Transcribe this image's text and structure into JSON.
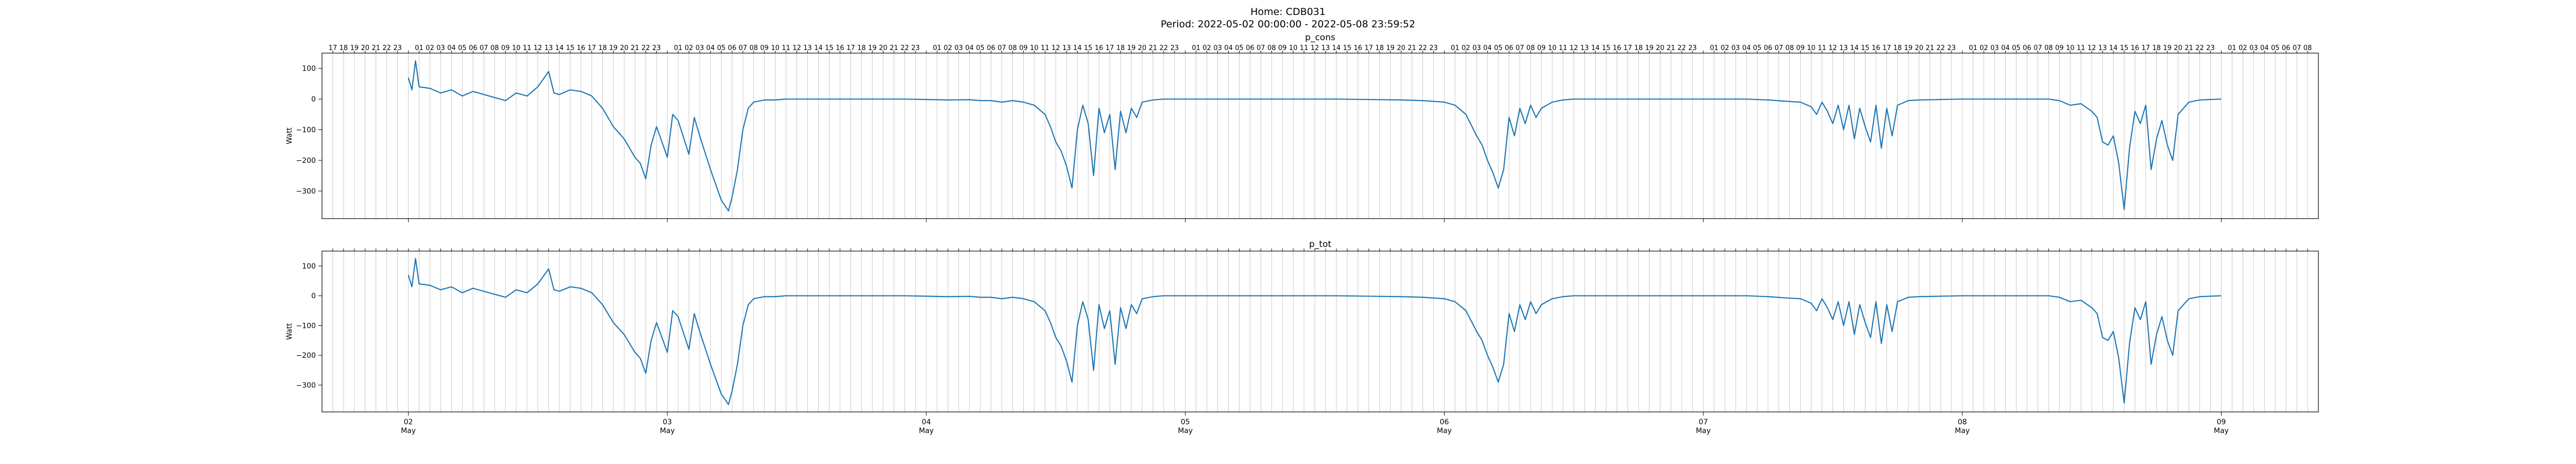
{
  "figure": {
    "title_line1": "Home: CDB031",
    "title_line2": "Period: 2022-05-02 00:00:00 - 2022-05-08 23:59:52"
  },
  "colors": {
    "line": "#1f77b4",
    "grid": "#c8c8c8",
    "axis": "#000000"
  },
  "chart_data": [
    {
      "type": "line",
      "title": "p_cons",
      "ylabel": "Watt",
      "xlim": [
        "2022-05-01 16:00",
        "2022-05-09 09:00"
      ],
      "ylim": [
        -390,
        150
      ],
      "yticks": [
        100,
        0,
        -100,
        -200,
        -300
      ],
      "x_major_ticks": [
        {
          "date": "2022-05-02",
          "day": "02",
          "month": "May"
        },
        {
          "date": "2022-05-03",
          "day": "03",
          "month": "May"
        },
        {
          "date": "2022-05-04",
          "day": "04",
          "month": "May"
        },
        {
          "date": "2022-05-05",
          "day": "05",
          "month": "May"
        },
        {
          "date": "2022-05-06",
          "day": "06",
          "month": "May"
        },
        {
          "date": "2022-05-07",
          "day": "07",
          "month": "May"
        },
        {
          "date": "2022-05-08",
          "day": "08",
          "month": "May"
        },
        {
          "date": "2022-05-09",
          "day": "09",
          "month": "May"
        }
      ],
      "x_minor_ticks": "hourly (labels 01 to 23; midnight unlabeled)",
      "grid": "vertical hourly",
      "series": [
        {
          "points": [
            [
              "2022-05-02 00:00",
              70
            ],
            [
              "2022-05-02 00:20",
              30
            ],
            [
              "2022-05-02 00:40",
              125
            ],
            [
              "2022-05-02 01:00",
              40
            ],
            [
              "2022-05-02 02:00",
              35
            ],
            [
              "2022-05-02 03:00",
              20
            ],
            [
              "2022-05-02 04:00",
              30
            ],
            [
              "2022-05-02 05:00",
              10
            ],
            [
              "2022-05-02 06:00",
              25
            ],
            [
              "2022-05-02 07:00",
              15
            ],
            [
              "2022-05-02 08:00",
              5
            ],
            [
              "2022-05-02 09:00",
              -5
            ],
            [
              "2022-05-02 10:00",
              20
            ],
            [
              "2022-05-02 11:00",
              10
            ],
            [
              "2022-05-02 12:00",
              40
            ],
            [
              "2022-05-02 13:00",
              90
            ],
            [
              "2022-05-02 13:30",
              20
            ],
            [
              "2022-05-02 14:00",
              15
            ],
            [
              "2022-05-02 15:00",
              30
            ],
            [
              "2022-05-02 16:00",
              25
            ],
            [
              "2022-05-02 17:00",
              10
            ],
            [
              "2022-05-02 18:00",
              -30
            ],
            [
              "2022-05-02 19:00",
              -90
            ],
            [
              "2022-05-02 20:00",
              -130
            ],
            [
              "2022-05-02 21:00",
              -190
            ],
            [
              "2022-05-02 21:30",
              -210
            ],
            [
              "2022-05-02 22:00",
              -260
            ],
            [
              "2022-05-02 22:30",
              -150
            ],
            [
              "2022-05-02 23:00",
              -90
            ],
            [
              "2022-05-03 00:00",
              -190
            ],
            [
              "2022-05-03 00:30",
              -50
            ],
            [
              "2022-05-03 01:00",
              -70
            ],
            [
              "2022-05-03 02:00",
              -180
            ],
            [
              "2022-05-03 02:30",
              -60
            ],
            [
              "2022-05-03 03:00",
              -120
            ],
            [
              "2022-05-03 04:00",
              -230
            ],
            [
              "2022-05-03 05:00",
              -330
            ],
            [
              "2022-05-03 05:40",
              -365
            ],
            [
              "2022-05-03 06:00",
              -320
            ],
            [
              "2022-05-03 06:30",
              -230
            ],
            [
              "2022-05-03 07:00",
              -100
            ],
            [
              "2022-05-03 07:30",
              -30
            ],
            [
              "2022-05-03 08:00",
              -10
            ],
            [
              "2022-05-03 09:00",
              -3
            ],
            [
              "2022-05-03 10:00",
              -3
            ],
            [
              "2022-05-03 11:00",
              0
            ],
            [
              "2022-05-03 14:00",
              0
            ],
            [
              "2022-05-03 18:00",
              0
            ],
            [
              "2022-05-03 22:00",
              0
            ],
            [
              "2022-05-04 02:00",
              -3
            ],
            [
              "2022-05-04 04:00",
              -2
            ],
            [
              "2022-05-04 05:00",
              -5
            ],
            [
              "2022-05-04 06:00",
              -5
            ],
            [
              "2022-05-04 07:00",
              -10
            ],
            [
              "2022-05-04 08:00",
              -5
            ],
            [
              "2022-05-04 09:00",
              -10
            ],
            [
              "2022-05-04 10:00",
              -20
            ],
            [
              "2022-05-04 11:00",
              -50
            ],
            [
              "2022-05-04 11:30",
              -90
            ],
            [
              "2022-05-04 12:00",
              -140
            ],
            [
              "2022-05-04 12:30",
              -170
            ],
            [
              "2022-05-04 13:00",
              -220
            ],
            [
              "2022-05-04 13:30",
              -290
            ],
            [
              "2022-05-04 14:00",
              -100
            ],
            [
              "2022-05-04 14:30",
              -20
            ],
            [
              "2022-05-04 15:00",
              -80
            ],
            [
              "2022-05-04 15:30",
              -250
            ],
            [
              "2022-05-04 16:00",
              -30
            ],
            [
              "2022-05-04 16:30",
              -110
            ],
            [
              "2022-05-04 17:00",
              -50
            ],
            [
              "2022-05-04 17:30",
              -230
            ],
            [
              "2022-05-04 18:00",
              -40
            ],
            [
              "2022-05-04 18:30",
              -110
            ],
            [
              "2022-05-04 19:00",
              -30
            ],
            [
              "2022-05-04 19:30",
              -60
            ],
            [
              "2022-05-04 20:00",
              -10
            ],
            [
              "2022-05-04 21:00",
              -3
            ],
            [
              "2022-05-04 22:00",
              0
            ],
            [
              "2022-05-05 02:00",
              0
            ],
            [
              "2022-05-05 08:00",
              0
            ],
            [
              "2022-05-05 14:00",
              0
            ],
            [
              "2022-05-05 20:00",
              -3
            ],
            [
              "2022-05-05 22:00",
              -5
            ],
            [
              "2022-05-06 00:00",
              -10
            ],
            [
              "2022-05-06 01:00",
              -20
            ],
            [
              "2022-05-06 02:00",
              -50
            ],
            [
              "2022-05-06 03:00",
              -120
            ],
            [
              "2022-05-06 03:30",
              -150
            ],
            [
              "2022-05-06 04:00",
              -200
            ],
            [
              "2022-05-06 04:30",
              -240
            ],
            [
              "2022-05-06 05:00",
              -290
            ],
            [
              "2022-05-06 05:30",
              -230
            ],
            [
              "2022-05-06 06:00",
              -60
            ],
            [
              "2022-05-06 06:30",
              -120
            ],
            [
              "2022-05-06 07:00",
              -30
            ],
            [
              "2022-05-06 07:30",
              -80
            ],
            [
              "2022-05-06 08:00",
              -20
            ],
            [
              "2022-05-06 08:30",
              -60
            ],
            [
              "2022-05-06 09:00",
              -30
            ],
            [
              "2022-05-06 10:00",
              -10
            ],
            [
              "2022-05-06 11:00",
              -3
            ],
            [
              "2022-05-06 12:00",
              0
            ],
            [
              "2022-05-06 16:00",
              0
            ],
            [
              "2022-05-06 20:00",
              0
            ],
            [
              "2022-05-07 00:00",
              0
            ],
            [
              "2022-05-07 04:00",
              0
            ],
            [
              "2022-05-07 06:00",
              -3
            ],
            [
              "2022-05-07 08:00",
              -8
            ],
            [
              "2022-05-07 09:00",
              -10
            ],
            [
              "2022-05-07 10:00",
              -25
            ],
            [
              "2022-05-07 10:30",
              -50
            ],
            [
              "2022-05-07 11:00",
              -10
            ],
            [
              "2022-05-07 11:30",
              -40
            ],
            [
              "2022-05-07 12:00",
              -80
            ],
            [
              "2022-05-07 12:30",
              -20
            ],
            [
              "2022-05-07 13:00",
              -100
            ],
            [
              "2022-05-07 13:30",
              -20
            ],
            [
              "2022-05-07 14:00",
              -130
            ],
            [
              "2022-05-07 14:30",
              -30
            ],
            [
              "2022-05-07 15:00",
              -90
            ],
            [
              "2022-05-07 15:30",
              -140
            ],
            [
              "2022-05-07 16:00",
              -20
            ],
            [
              "2022-05-07 16:30",
              -160
            ],
            [
              "2022-05-07 17:00",
              -30
            ],
            [
              "2022-05-07 17:30",
              -120
            ],
            [
              "2022-05-07 18:00",
              -20
            ],
            [
              "2022-05-07 19:00",
              -5
            ],
            [
              "2022-05-07 20:00",
              -3
            ],
            [
              "2022-05-08 00:00",
              0
            ],
            [
              "2022-05-08 04:00",
              0
            ],
            [
              "2022-05-08 08:00",
              0
            ],
            [
              "2022-05-08 09:00",
              -5
            ],
            [
              "2022-05-08 10:00",
              -20
            ],
            [
              "2022-05-08 11:00",
              -15
            ],
            [
              "2022-05-08 12:00",
              -40
            ],
            [
              "2022-05-08 12:30",
              -60
            ],
            [
              "2022-05-08 13:00",
              -140
            ],
            [
              "2022-05-08 13:30",
              -150
            ],
            [
              "2022-05-08 14:00",
              -120
            ],
            [
              "2022-05-08 14:30",
              -210
            ],
            [
              "2022-05-08 15:00",
              -360
            ],
            [
              "2022-05-08 15:30",
              -160
            ],
            [
              "2022-05-08 16:00",
              -40
            ],
            [
              "2022-05-08 16:30",
              -80
            ],
            [
              "2022-05-08 17:00",
              -20
            ],
            [
              "2022-05-08 17:30",
              -230
            ],
            [
              "2022-05-08 18:00",
              -130
            ],
            [
              "2022-05-08 18:30",
              -70
            ],
            [
              "2022-05-08 19:00",
              -150
            ],
            [
              "2022-05-08 19:30",
              -200
            ],
            [
              "2022-05-08 20:00",
              -50
            ],
            [
              "2022-05-08 21:00",
              -10
            ],
            [
              "2022-05-08 22:00",
              -3
            ],
            [
              "2022-05-08 23:59",
              0
            ]
          ]
        }
      ]
    },
    {
      "type": "line",
      "title": "p_tot",
      "ylabel": "Watt",
      "xlim": [
        "2022-05-01 16:00",
        "2022-05-09 09:00"
      ],
      "ylim": [
        -390,
        150
      ],
      "yticks": [
        100,
        0,
        -100,
        -200,
        -300
      ],
      "x_major_ticks": [
        {
          "date": "2022-05-02",
          "day": "02",
          "month": "May"
        },
        {
          "date": "2022-05-03",
          "day": "03",
          "month": "May"
        },
        {
          "date": "2022-05-04",
          "day": "04",
          "month": "May"
        },
        {
          "date": "2022-05-05",
          "day": "05",
          "month": "May"
        },
        {
          "date": "2022-05-06",
          "day": "06",
          "month": "May"
        },
        {
          "date": "2022-05-07",
          "day": "07",
          "month": "May"
        },
        {
          "date": "2022-05-08",
          "day": "08",
          "month": "May"
        },
        {
          "date": "2022-05-09",
          "day": "09",
          "month": "May"
        }
      ],
      "grid": "vertical hourly",
      "series": [
        {
          "same_as": "p_cons"
        }
      ]
    }
  ]
}
